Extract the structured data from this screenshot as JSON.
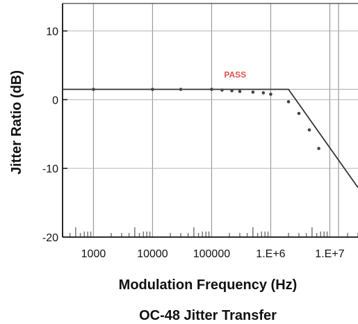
{
  "chart_data": {
    "type": "line",
    "title": "OC-48 Jitter Transfer",
    "xlabel": "Modulation Frequency (Hz)",
    "ylabel": "Jitter Ratio (dB)",
    "x_scale": "log",
    "xlim": [
      300,
      30000000
    ],
    "ylim": [
      -20,
      14
    ],
    "x_ticks": [
      1000,
      10000,
      100000,
      1000000,
      10000000
    ],
    "x_tick_labels": [
      "1000",
      "10000",
      "100000",
      "1.E+6",
      "1.E+7"
    ],
    "y_ticks": [
      10,
      0,
      -10,
      -20
    ],
    "y_tick_labels": [
      "10",
      "0",
      "-10",
      "-20"
    ],
    "grid": true,
    "annotation": {
      "text": "PASS",
      "x": 250000,
      "y": 3.2,
      "color": "#e05050"
    },
    "mask": {
      "name": "",
      "x": [
        300,
        2000000,
        30000000
      ],
      "y": [
        1.5,
        1.5,
        -12.8
      ]
    },
    "series": [
      {
        "style": "points",
        "x": [
          1000,
          10000,
          30000,
          100000,
          150000,
          220000,
          300000,
          500000,
          750000,
          1000000,
          2000000,
          3000000,
          4500000,
          6500000
        ],
        "y": [
          1.5,
          1.5,
          1.5,
          1.5,
          1.4,
          1.3,
          1.2,
          1.1,
          1.0,
          0.8,
          -0.3,
          -2.0,
          -4.4,
          -7.1
        ]
      }
    ]
  }
}
